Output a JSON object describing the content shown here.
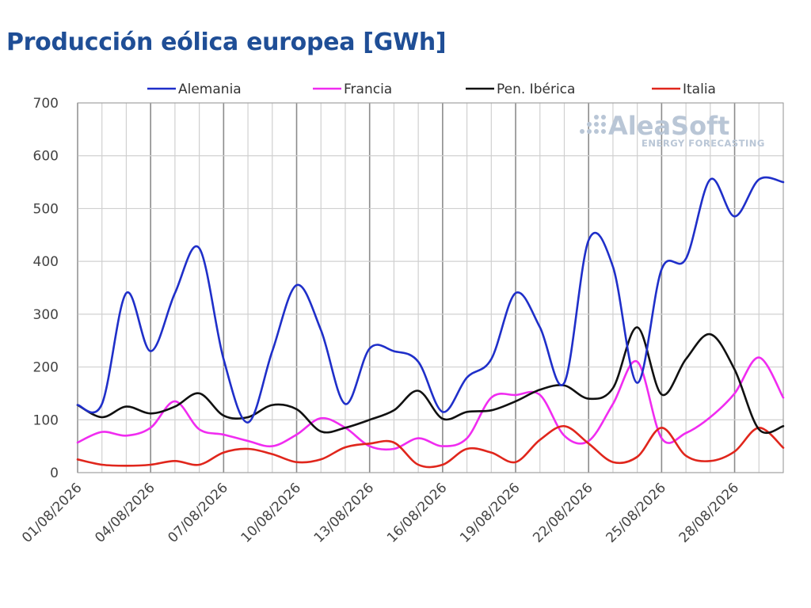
{
  "title": "Producción eólica europea [GWh]",
  "watermark": {
    "brand": "AleaSoft",
    "tagline": "ENERGY FORECASTING"
  },
  "chart_data": {
    "type": "line",
    "title": "Producción eólica europea [GWh]",
    "xlabel": "",
    "ylabel": "",
    "ylim": [
      0,
      700
    ],
    "yticks": [
      0,
      100,
      200,
      300,
      400,
      500,
      600,
      700
    ],
    "grid": true,
    "legend_position": "top",
    "x": [
      "01/08/2026",
      "02/08/2026",
      "03/08/2026",
      "04/08/2026",
      "05/08/2026",
      "06/08/2026",
      "07/08/2026",
      "08/08/2026",
      "09/08/2026",
      "10/08/2026",
      "11/08/2026",
      "12/08/2026",
      "13/08/2026",
      "14/08/2026",
      "15/08/2026",
      "16/08/2026",
      "17/08/2026",
      "18/08/2026",
      "19/08/2026",
      "20/08/2026",
      "21/08/2026",
      "22/08/2026",
      "23/08/2026",
      "24/08/2026",
      "25/08/2026",
      "26/08/2026",
      "27/08/2026",
      "28/08/2026",
      "29/08/2026",
      "30/08/2026"
    ],
    "xtick_labels": [
      "01/08/2026",
      "04/08/2026",
      "07/08/2026",
      "10/08/2026",
      "13/08/2026",
      "16/08/2026",
      "19/08/2026",
      "22/08/2026",
      "25/08/2026",
      "28/08/2026"
    ],
    "series": [
      {
        "name": "Alemania",
        "color": "#1f2fc9",
        "values": [
          128,
          130,
          340,
          230,
          340,
          425,
          215,
          95,
          230,
          355,
          270,
          130,
          235,
          230,
          210,
          115,
          180,
          215,
          340,
          275,
          170,
          440,
          390,
          170,
          385,
          405,
          555,
          485,
          555,
          550
        ]
      },
      {
        "name": "Francia",
        "color": "#f02cf0",
        "values": [
          57,
          77,
          70,
          85,
          135,
          82,
          72,
          60,
          50,
          72,
          103,
          85,
          50,
          45,
          65,
          50,
          65,
          142,
          147,
          147,
          70,
          60,
          130,
          210,
          65,
          75,
          105,
          150,
          218,
          142
        ]
      },
      {
        "name": "Pen. Ibérica",
        "color": "#111111",
        "values": [
          128,
          105,
          125,
          112,
          125,
          150,
          108,
          105,
          128,
          120,
          78,
          85,
          100,
          118,
          155,
          102,
          115,
          118,
          135,
          157,
          165,
          140,
          160,
          275,
          148,
          215,
          262,
          195,
          82,
          88
        ]
      },
      {
        "name": "Italia",
        "color": "#e0261c",
        "values": [
          25,
          15,
          13,
          15,
          22,
          15,
          38,
          45,
          35,
          20,
          25,
          48,
          55,
          57,
          15,
          15,
          45,
          38,
          20,
          62,
          88,
          55,
          20,
          30,
          85,
          32,
          22,
          40,
          85,
          47
        ]
      }
    ]
  }
}
